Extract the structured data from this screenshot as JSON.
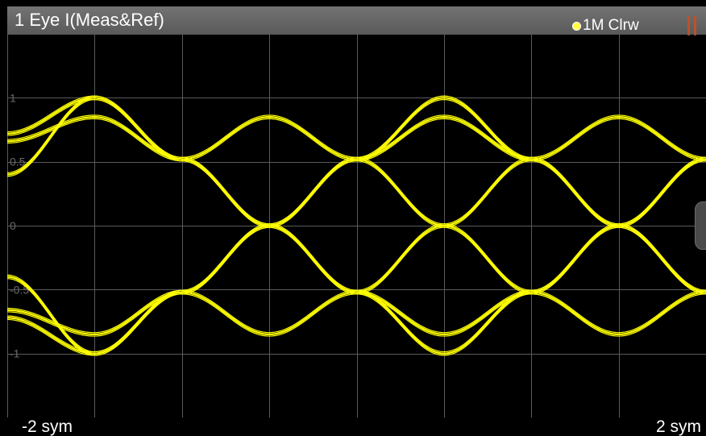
{
  "window": {
    "title": "1 Eye I(Meas&Ref)",
    "trace_label": "1M Clrw",
    "trace_color": "#ffff00",
    "grid_color": "#5a5a5a",
    "background": "#000000",
    "status_bar_color": "#c0502a"
  },
  "axes": {
    "x_start_label": "-2 sym",
    "x_stop_label": "2 sym",
    "y_tick_labels": [
      "1",
      "0.5",
      "0",
      "-0.5",
      "-1"
    ]
  },
  "chart_data": {
    "type": "line",
    "title": "1 Eye I(Meas&Ref)",
    "xlabel": "",
    "ylabel": "",
    "xlim": [
      -2,
      2
    ],
    "ylim": [
      -1.5,
      1.5
    ],
    "x_start_label": "-2 sym",
    "x_stop_label": "2 sym",
    "yticks": [
      1,
      0.5,
      0,
      -0.5,
      -1
    ],
    "grid": true,
    "legend": "top-right",
    "description_trace": "1M Clrw",
    "eye_crossings_x": [
      -1,
      1
    ],
    "series": [
      {
        "x": [
          -2.0,
          -1.5,
          -1.0,
          -0.5,
          0.0,
          0.5,
          1.0,
          1.5,
          2.0
        ],
        "values": [
          0.72,
          1.0,
          0.52,
          0.0,
          -0.52,
          -1.0,
          -0.52,
          0.0,
          0.52
        ]
      },
      {
        "x": [
          -2.0,
          -1.5,
          -1.0,
          -0.5,
          0.0,
          0.5,
          1.0,
          1.5,
          2.0
        ],
        "values": [
          0.66,
          0.85,
          0.52,
          0.0,
          -0.52,
          -0.85,
          -0.52,
          0.0,
          0.52
        ]
      },
      {
        "x": [
          -2.0,
          -1.5,
          -1.0,
          -0.5,
          0.0,
          0.5,
          1.0,
          1.5,
          2.0
        ],
        "values": [
          0.4,
          1.0,
          0.52,
          0.85,
          0.52,
          0.0,
          -0.52,
          -0.85,
          -0.52
        ]
      },
      {
        "x": [
          -2.0,
          -1.5,
          -1.0,
          -0.5,
          0.0,
          0.5,
          1.0,
          1.5,
          2.0
        ],
        "values": [
          -0.72,
          -1.0,
          -0.52,
          0.0,
          0.52,
          1.0,
          0.52,
          0.0,
          -0.52
        ]
      },
      {
        "x": [
          -2.0,
          -1.5,
          -1.0,
          -0.5,
          0.0,
          0.5,
          1.0,
          1.5,
          2.0
        ],
        "values": [
          -0.66,
          -0.85,
          -0.52,
          0.0,
          0.52,
          0.85,
          0.52,
          0.0,
          -0.52
        ]
      },
      {
        "x": [
          -2.0,
          -1.5,
          -1.0,
          -0.5,
          0.0,
          0.5,
          1.0,
          1.5,
          2.0
        ],
        "values": [
          -0.4,
          -1.0,
          -0.52,
          -0.85,
          -0.52,
          0.0,
          0.52,
          0.85,
          0.52
        ]
      }
    ]
  }
}
